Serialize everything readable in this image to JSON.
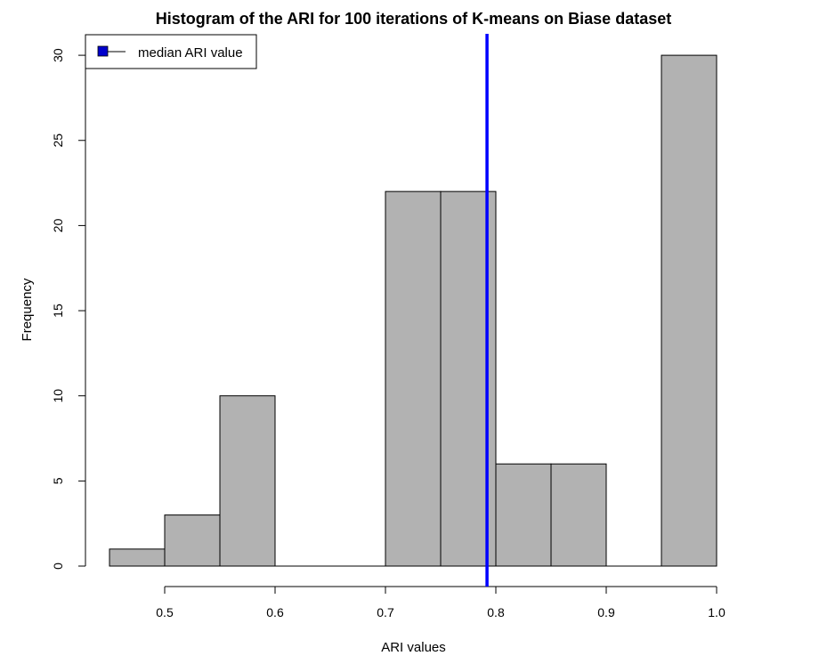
{
  "chart_data": {
    "type": "histogram",
    "title": "Histogram of the ARI for 100 iterations of K-means on Biase dataset",
    "xlabel": "ARI values",
    "ylabel": "Frequency",
    "bins": [
      {
        "x0": 0.45,
        "x1": 0.5,
        "count": 1
      },
      {
        "x0": 0.5,
        "x1": 0.55,
        "count": 3
      },
      {
        "x0": 0.55,
        "x1": 0.6,
        "count": 10
      },
      {
        "x0": 0.6,
        "x1": 0.65,
        "count": 0
      },
      {
        "x0": 0.65,
        "x1": 0.7,
        "count": 0
      },
      {
        "x0": 0.7,
        "x1": 0.75,
        "count": 22
      },
      {
        "x0": 0.75,
        "x1": 0.8,
        "count": 22
      },
      {
        "x0": 0.8,
        "x1": 0.85,
        "count": 6
      },
      {
        "x0": 0.85,
        "x1": 0.9,
        "count": 6
      },
      {
        "x0": 0.9,
        "x1": 0.95,
        "count": 0
      },
      {
        "x0": 0.95,
        "x1": 1.0,
        "count": 30
      }
    ],
    "xticks": [
      "0.5",
      "0.6",
      "0.7",
      "0.8",
      "0.9",
      "1.0"
    ],
    "yticks": [
      "0",
      "5",
      "10",
      "15",
      "20",
      "25",
      "30"
    ],
    "xlim": [
      0.45,
      1.0
    ],
    "ylim": [
      0,
      30
    ],
    "median_line": {
      "value": 0.792,
      "color": "#0000FF"
    },
    "bar_color": "#B2B2B2",
    "legend": {
      "label": "median ARI value",
      "color": "#0000CC",
      "placement": "top-left"
    },
    "grid": false
  }
}
